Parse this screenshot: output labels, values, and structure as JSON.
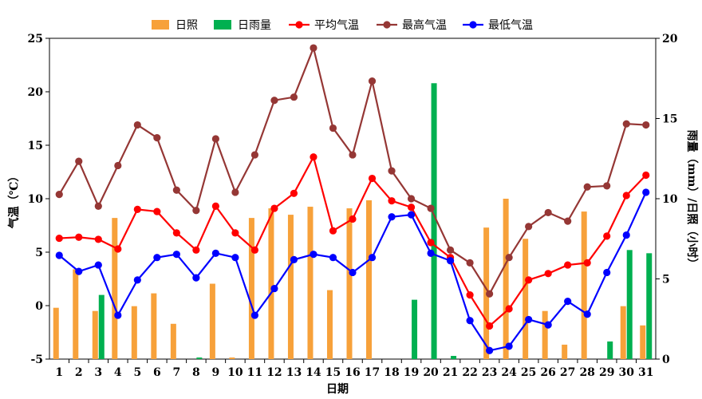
{
  "chart_data": {
    "type": "bar+line",
    "xlabel": "日期",
    "ylabel_left": "气温（℃）",
    "ylabel_right": "雨量（mm）/日照（小时）",
    "ylim_left": [
      -5,
      25
    ],
    "ylim_right": [
      0,
      20
    ],
    "yticks_left": [
      "-5",
      "0",
      "5",
      "10",
      "15",
      "20",
      "25"
    ],
    "yticks_right": [
      "0",
      "5",
      "10",
      "15",
      "20"
    ],
    "categories": [
      "1",
      "2",
      "3",
      "4",
      "5",
      "6",
      "7",
      "8",
      "9",
      "10",
      "11",
      "12",
      "13",
      "14",
      "15",
      "16",
      "17",
      "18",
      "19",
      "20",
      "21",
      "22",
      "23",
      "24",
      "25",
      "26",
      "27",
      "28",
      "29",
      "30",
      "31"
    ],
    "legend": {
      "position": "top",
      "items": [
        {
          "key": "sunshine",
          "label": "日照",
          "kind": "bar"
        },
        {
          "key": "rain",
          "label": "日雨量",
          "kind": "bar"
        },
        {
          "key": "avg",
          "label": "平均气温",
          "kind": "line"
        },
        {
          "key": "max",
          "label": "最高气温",
          "kind": "line"
        },
        {
          "key": "min",
          "label": "最低气温",
          "kind": "line"
        }
      ]
    },
    "series": [
      {
        "name": "日照",
        "key": "sunshine",
        "axis": "right",
        "color": "#f7a13a",
        "values": [
          3.2,
          5.6,
          3.0,
          8.8,
          3.3,
          4.1,
          2.2,
          0,
          4.7,
          0.1,
          8.8,
          9.4,
          9.0,
          9.5,
          4.3,
          9.4,
          9.9,
          0,
          0,
          0,
          0,
          0,
          8.2,
          10.0,
          7.5,
          3.0,
          0.9,
          9.2,
          0,
          3.3,
          2.1
        ]
      },
      {
        "name": "日雨量",
        "key": "rain",
        "axis": "right",
        "color": "#00b050",
        "values": [
          0,
          0,
          4.0,
          0,
          0,
          0,
          0,
          0.1,
          0,
          0,
          0,
          0,
          0,
          0,
          0,
          0,
          0,
          0,
          3.7,
          17.2,
          0.2,
          0,
          0,
          0,
          0,
          0,
          0,
          0,
          1.1,
          6.8,
          6.6
        ]
      },
      {
        "name": "平均气温",
        "key": "avg",
        "axis": "left",
        "color": "#ff0000",
        "values": [
          6.3,
          6.4,
          6.2,
          5.3,
          9.0,
          8.8,
          6.8,
          5.2,
          9.3,
          6.8,
          5.2,
          9.1,
          10.5,
          13.9,
          7.0,
          8.1,
          11.9,
          9.8,
          9.2,
          5.9,
          4.5,
          1.0,
          -1.9,
          -0.3,
          2.4,
          3.0,
          3.8,
          4.0,
          6.5,
          10.3,
          12.2
        ]
      },
      {
        "name": "最高气温",
        "key": "max",
        "axis": "left",
        "color": "#953735",
        "values": [
          10.4,
          13.5,
          9.3,
          13.1,
          16.9,
          15.7,
          10.8,
          8.9,
          15.6,
          10.6,
          14.1,
          19.2,
          19.5,
          24.1,
          16.6,
          14.1,
          21.0,
          12.6,
          10.0,
          9.1,
          5.2,
          4.0,
          1.1,
          4.5,
          7.4,
          8.7,
          7.9,
          11.1,
          11.2,
          17.0,
          16.9
        ]
      },
      {
        "name": "最低气温",
        "key": "min",
        "axis": "left",
        "color": "#0000ff",
        "values": [
          4.7,
          3.2,
          3.8,
          -0.9,
          2.4,
          4.5,
          4.8,
          2.6,
          4.9,
          4.5,
          -0.9,
          1.6,
          4.3,
          4.8,
          4.5,
          3.1,
          4.5,
          8.3,
          8.5,
          4.9,
          4.2,
          -1.4,
          -4.2,
          -3.8,
          -1.3,
          -1.8,
          0.4,
          -0.8,
          3.1,
          6.6,
          10.6
        ]
      }
    ]
  }
}
